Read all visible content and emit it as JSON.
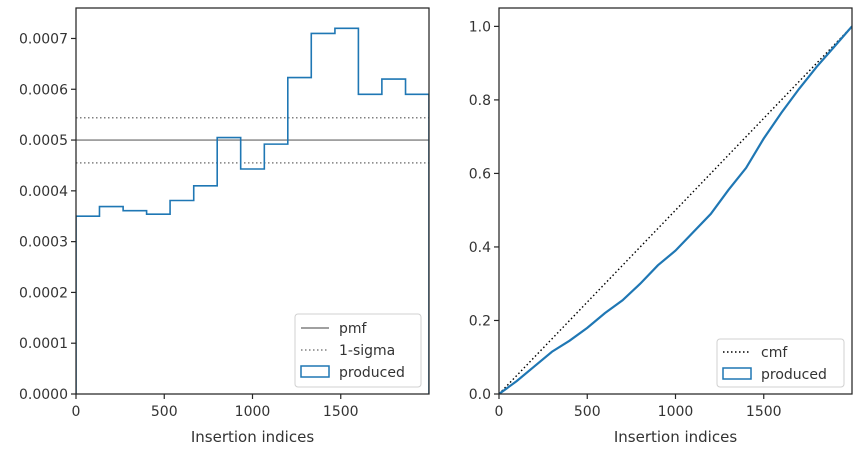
{
  "chart_data": [
    {
      "type": "step",
      "xlabel": "Insertion indices",
      "ylabel": "",
      "xlim": [
        0,
        2000
      ],
      "ylim": [
        0,
        0.00076
      ],
      "xticks": [
        0,
        500,
        1000,
        1500
      ],
      "xtick_labels": [
        "0",
        "500",
        "1000",
        "1500"
      ],
      "yticks": [
        0,
        0.0001,
        0.0002,
        0.0003,
        0.0004,
        0.0005,
        0.0006,
        0.0007
      ],
      "ytick_labels": [
        "0.0000",
        "0.0001",
        "0.0002",
        "0.0003",
        "0.0004",
        "0.0005",
        "0.0006",
        "0.0007"
      ],
      "grid": false,
      "legend": "lower-right",
      "lines": [
        {
          "name": "pmf",
          "y": 0.0005,
          "color": "#808080",
          "style": "solid"
        },
        {
          "name": "1-sigma",
          "y": [
            0.000455,
            0.000544
          ],
          "color": "#808080",
          "style": "dotted"
        }
      ],
      "series": [
        {
          "name": "produced",
          "color": "#1f77b4",
          "bin_edges": [
            0,
            133,
            267,
            400,
            533,
            667,
            800,
            933,
            1067,
            1200,
            1333,
            1467,
            1600,
            1733,
            1867,
            2000
          ],
          "values": [
            0.00035,
            0.000369,
            0.000361,
            0.000354,
            0.000381,
            0.00041,
            0.000505,
            0.000443,
            0.000492,
            0.000623,
            0.00071,
            0.00072,
            0.00059,
            0.00062,
            0.00059
          ]
        }
      ]
    },
    {
      "type": "line",
      "xlabel": "Insertion indices",
      "ylabel": "",
      "xlim": [
        0,
        2000
      ],
      "ylim": [
        0,
        1.05
      ],
      "xticks": [
        0,
        500,
        1000,
        1500
      ],
      "xtick_labels": [
        "0",
        "500",
        "1000",
        "1500"
      ],
      "yticks": [
        0,
        0.2,
        0.4,
        0.6,
        0.8,
        1.0
      ],
      "ytick_labels": [
        "0.0",
        "0.2",
        "0.4",
        "0.6",
        "0.8",
        "1.0"
      ],
      "grid": false,
      "legend": "lower-right",
      "series": [
        {
          "name": "cmf",
          "color": "#000000",
          "style": "dotted",
          "x": [
            0,
            2000
          ],
          "y": [
            0,
            1.0
          ]
        },
        {
          "name": "produced",
          "color": "#1f77b4",
          "style": "solid",
          "x": [
            0,
            100,
            200,
            300,
            400,
            500,
            600,
            700,
            800,
            900,
            1000,
            1100,
            1200,
            1300,
            1400,
            1500,
            1600,
            1700,
            1800,
            1900,
            2000
          ],
          "y": [
            0,
            0.035,
            0.075,
            0.115,
            0.145,
            0.18,
            0.22,
            0.255,
            0.3,
            0.35,
            0.39,
            0.44,
            0.49,
            0.555,
            0.615,
            0.695,
            0.765,
            0.83,
            0.89,
            0.945,
            1.0
          ]
        }
      ]
    }
  ]
}
